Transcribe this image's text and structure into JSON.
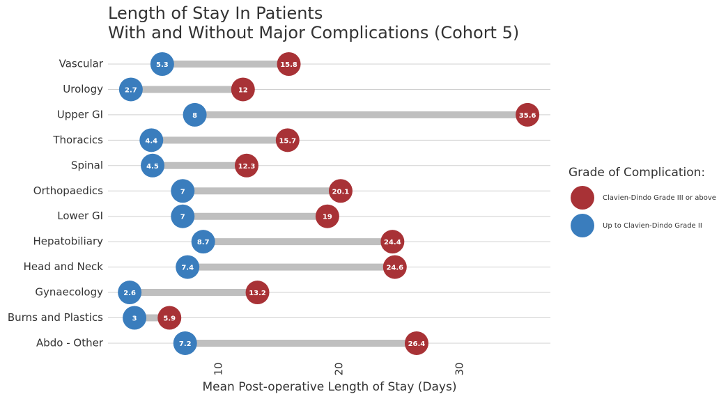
{
  "chart_data": {
    "type": "dumbbell",
    "title": "Length of Stay In Patients",
    "subtitle": "With and Without Major Complications (Cohort 5)",
    "x_label": "Mean Post-operative Length of Stay (Days)",
    "legend_title": "Grade of Complication:",
    "categories": [
      "Vascular",
      "Urology",
      "Upper GI",
      "Thoracics",
      "Spinal",
      "Orthopaedics",
      "Lower GI",
      "Hepatobiliary",
      "Head and Neck",
      "Gynaecology",
      "Burns and Plastics",
      "Abdo - Other"
    ],
    "series": [
      {
        "name": "Clavien-Dindo Grade III or above",
        "color": "#a83236",
        "values": [
          15.8,
          12,
          35.6,
          15.7,
          12.3,
          20.1,
          19,
          24.4,
          24.6,
          13.2,
          5.9,
          26.4
        ]
      },
      {
        "name": "Up to Clavien-Dindo Grade II",
        "color": "#3a7dbd",
        "values": [
          5.3,
          2.7,
          8,
          4.4,
          4.5,
          7,
          7,
          8.7,
          7.4,
          2.6,
          3,
          7.2
        ]
      }
    ],
    "connector_color": "#bfbfbf",
    "xlim": [
      0.8,
      37.5
    ],
    "xticks": [
      10,
      20,
      30
    ]
  }
}
